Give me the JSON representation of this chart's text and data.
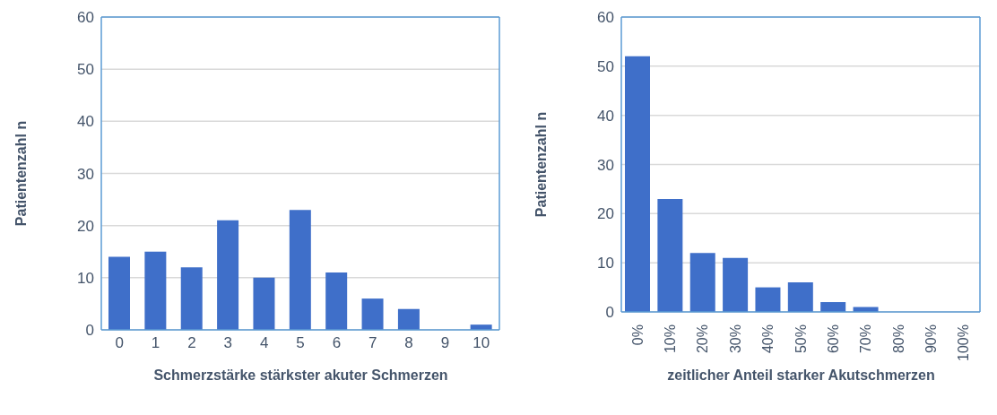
{
  "chart_data": [
    {
      "type": "bar",
      "categories": [
        "0",
        "1",
        "2",
        "3",
        "4",
        "5",
        "6",
        "7",
        "8",
        "9",
        "10"
      ],
      "values": [
        14,
        15,
        12,
        21,
        10,
        23,
        11,
        6,
        4,
        0,
        1
      ],
      "color": "#3f6fc9",
      "xlabel": "Schmerzstärke stärkster akuter Schmerzen",
      "ylabel": "Patientenzahl n",
      "ylim": [
        0,
        60
      ],
      "yticks": [
        0,
        10,
        20,
        30,
        40,
        50,
        60
      ],
      "grid": "y"
    },
    {
      "type": "bar",
      "categories": [
        "0%",
        "10%",
        "20%",
        "30%",
        "40%",
        "50%",
        "60%",
        "70%",
        "80%",
        "90%",
        "100%"
      ],
      "values": [
        52,
        23,
        12,
        11,
        5,
        6,
        2,
        1,
        0,
        0,
        0
      ],
      "color": "#3f6fc9",
      "xlabel": "zeitlicher Anteil starker Akutschmerzen",
      "ylabel": "Patientenzahl n",
      "ylim": [
        0,
        60
      ],
      "yticks": [
        0,
        10,
        20,
        30,
        40,
        50,
        60
      ],
      "grid": "y"
    }
  ]
}
